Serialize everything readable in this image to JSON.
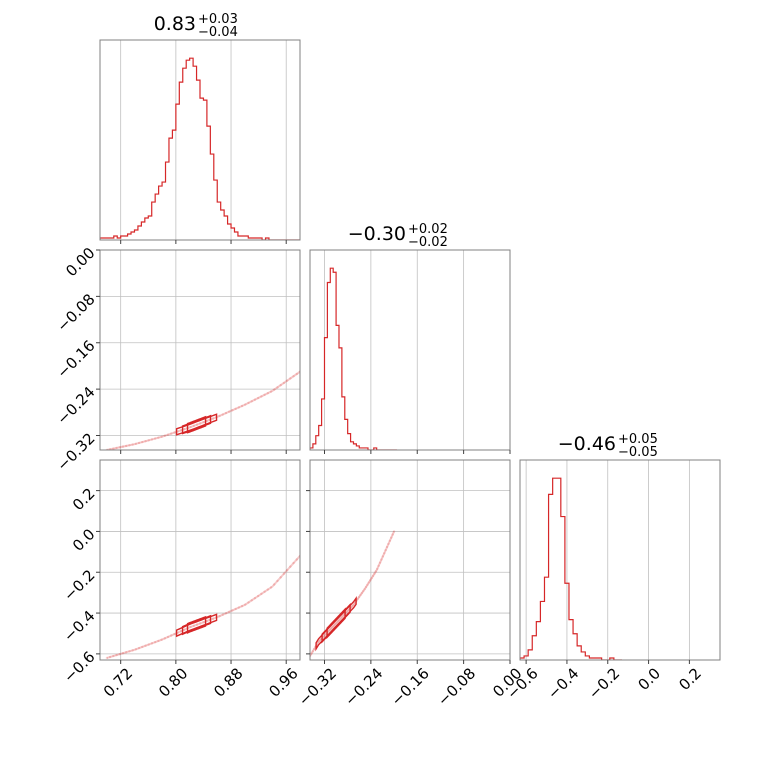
{
  "chart_data": {
    "type": "corner",
    "color": "#d62728",
    "parameters": [
      {
        "title": {
          "value": "0.83",
          "plus": "+0.03",
          "minus": "−0.04"
        },
        "range": [
          0.69,
          0.98
        ],
        "ticks": [
          0.72,
          0.8,
          0.88,
          0.96
        ],
        "tick_labels": [
          "0.72",
          "0.80",
          "0.88",
          "0.96"
        ],
        "hist_x": [
          0.69,
          0.695,
          0.7,
          0.705,
          0.71,
          0.715,
          0.72,
          0.725,
          0.73,
          0.735,
          0.74,
          0.745,
          0.75,
          0.755,
          0.76,
          0.765,
          0.77,
          0.775,
          0.78,
          0.785,
          0.79,
          0.795,
          0.8,
          0.805,
          0.81,
          0.815,
          0.82,
          0.825,
          0.83,
          0.835,
          0.84,
          0.845,
          0.85,
          0.855,
          0.86,
          0.865,
          0.87,
          0.875,
          0.88,
          0.885,
          0.89,
          0.895,
          0.9,
          0.905,
          0.91,
          0.915,
          0.92,
          0.925,
          0.93,
          0.935,
          0.94,
          0.945,
          0.95,
          0.955,
          0.96,
          0.965,
          0.97,
          0.975
        ],
        "hist_y": [
          0.01,
          0.01,
          0.01,
          0.01,
          0.02,
          0.01,
          0.02,
          0.02,
          0.03,
          0.04,
          0.05,
          0.07,
          0.09,
          0.11,
          0.12,
          0.19,
          0.23,
          0.27,
          0.29,
          0.39,
          0.51,
          0.55,
          0.68,
          0.79,
          0.86,
          0.9,
          0.91,
          0.87,
          0.8,
          0.71,
          0.7,
          0.57,
          0.43,
          0.3,
          0.19,
          0.15,
          0.12,
          0.08,
          0.06,
          0.04,
          0.02,
          0.02,
          0.02,
          0.01,
          0.01,
          0.01,
          0.01,
          0.0,
          0.01,
          0.0,
          0.0,
          0.0,
          0.0,
          0.0,
          0.0,
          0.0,
          0.0,
          0.0
        ]
      },
      {
        "title": {
          "value": "−0.30",
          "plus": "+0.02",
          "minus": "−0.02"
        },
        "range": [
          -0.345,
          0.0
        ],
        "ticks": [
          -0.32,
          -0.24,
          -0.16,
          -0.08,
          0.0
        ],
        "tick_labels": [
          "−0.32",
          "−0.24",
          "−0.16",
          "−0.08",
          "0.00"
        ],
        "hist_x": [
          -0.345,
          -0.34,
          -0.335,
          -0.33,
          -0.325,
          -0.32,
          -0.315,
          -0.31,
          -0.305,
          -0.3,
          -0.295,
          -0.29,
          -0.285,
          -0.28,
          -0.275,
          -0.27,
          -0.265,
          -0.26,
          -0.255,
          -0.25,
          -0.245,
          -0.24,
          -0.235,
          -0.23,
          -0.225,
          -0.22,
          -0.215,
          -0.21,
          -0.205,
          -0.2
        ],
        "hist_y": [
          0.01,
          0.03,
          0.07,
          0.12,
          0.25,
          0.55,
          0.82,
          0.89,
          0.87,
          0.61,
          0.5,
          0.26,
          0.15,
          0.08,
          0.04,
          0.03,
          0.02,
          0.01,
          0.01,
          0.01,
          0.0,
          0.0,
          0.01,
          0.0,
          0.0,
          0.0,
          0.0,
          0.0,
          0.0,
          0.0
        ]
      },
      {
        "title": {
          "value": "−0.46",
          "plus": "+0.05",
          "minus": "−0.05"
        },
        "range": [
          -0.63,
          0.35
        ],
        "ticks": [
          -0.6,
          -0.4,
          -0.2,
          0.0,
          0.2
        ],
        "tick_labels": [
          "−0.6",
          "−0.4",
          "−0.2",
          "0.0",
          "0.2"
        ],
        "hist_x": [
          -0.63,
          -0.61,
          -0.59,
          -0.57,
          -0.55,
          -0.53,
          -0.51,
          -0.49,
          -0.47,
          -0.45,
          -0.43,
          -0.41,
          -0.39,
          -0.37,
          -0.35,
          -0.33,
          -0.31,
          -0.29,
          -0.27,
          -0.25,
          -0.23,
          -0.21,
          -0.19,
          -0.17,
          -0.15
        ],
        "hist_y": [
          0.01,
          0.02,
          0.05,
          0.12,
          0.19,
          0.29,
          0.41,
          0.82,
          0.9,
          0.9,
          0.71,
          0.38,
          0.2,
          0.13,
          0.07,
          0.04,
          0.02,
          0.01,
          0.01,
          0.01,
          0.0,
          0.0,
          0.01,
          0.0,
          0.0
        ]
      }
    ],
    "scatter_trends": {
      "p1_p0": {
        "x": [
          0.7,
          0.74,
          0.78,
          0.82,
          0.86,
          0.9,
          0.94,
          0.98
        ],
        "y": [
          -0.345,
          -0.335,
          -0.322,
          -0.306,
          -0.288,
          -0.267,
          -0.243,
          -0.21
        ]
      },
      "p2_p0": {
        "x": [
          0.7,
          0.74,
          0.78,
          0.82,
          0.86,
          0.9,
          0.94,
          0.98
        ],
        "y": [
          -0.62,
          -0.58,
          -0.53,
          -0.47,
          -0.42,
          -0.36,
          -0.27,
          -0.12
        ]
      },
      "p2_p1": {
        "x": [
          -0.345,
          -0.33,
          -0.31,
          -0.29,
          -0.27,
          -0.25,
          -0.23,
          -0.2
        ],
        "y": [
          -0.61,
          -0.54,
          -0.48,
          -0.42,
          -0.36,
          -0.28,
          -0.19,
          0.0
        ]
      }
    },
    "grid": true
  }
}
